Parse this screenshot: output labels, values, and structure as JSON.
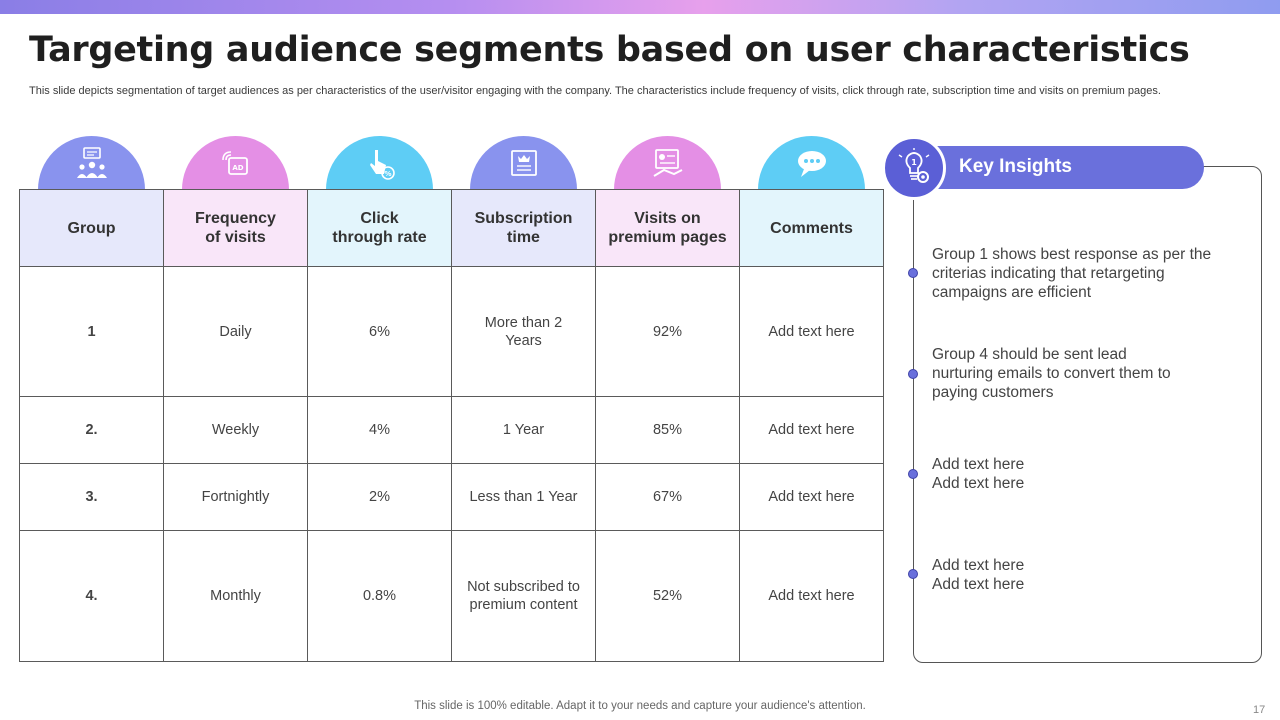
{
  "slide": {
    "title": "Targeting audience segments based on user characteristics",
    "subtitle": "This slide depicts segmentation of target audiences as per characteristics of the user/visitor engaging with the company. The characteristics include frequency of visits, click through rate, subscription time and visits on premium pages.",
    "footer": "This slide is 100% editable. Adapt it to your needs and capture your audience's attention.",
    "page_number": "17"
  },
  "colors": {
    "blue": "#8993ee",
    "pink": "#e48fe5",
    "cyan": "#5ecdf5",
    "accent": "#6a70dc"
  },
  "icons": [
    "group-people-icon",
    "ad-broadcast-icon",
    "click-percent-icon",
    "subscription-certificate-icon",
    "premium-page-icon",
    "comments-chat-icon",
    "lightbulb-gear-icon"
  ],
  "table": {
    "headers": {
      "group": "Group",
      "frequency": "Frequency of visits",
      "ctr": "Click through rate",
      "subscription": "Subscription time",
      "premium": "Visits on premium pages",
      "comments": "Comments"
    },
    "rows": [
      {
        "group": "1",
        "frequency": "Daily",
        "ctr": "6%",
        "subscription": "More than 2 Years",
        "premium": "92%",
        "comments": "Add text here"
      },
      {
        "group": "2.",
        "frequency": "Weekly",
        "ctr": "4%",
        "subscription": "1 Year",
        "premium": "85%",
        "comments": "Add text here"
      },
      {
        "group": "3.",
        "frequency": "Fortnightly",
        "ctr": "2%",
        "subscription": "Less than 1 Year",
        "premium": "67%",
        "comments": "Add text here"
      },
      {
        "group": "4.",
        "frequency": "Monthly",
        "ctr": "0.8%",
        "subscription": "Not subscribed to premium content",
        "premium": "52%",
        "comments": "Add text here"
      }
    ]
  },
  "insights": {
    "title": "Key Insights",
    "items": [
      "Group 1 shows best response as per the criterias indicating that retargeting campaigns are efficient",
      "Group 4 should be sent lead nurturing emails to convert them to paying customers",
      "Add text here\nAdd text here",
      "Add text here\nAdd text here"
    ]
  }
}
